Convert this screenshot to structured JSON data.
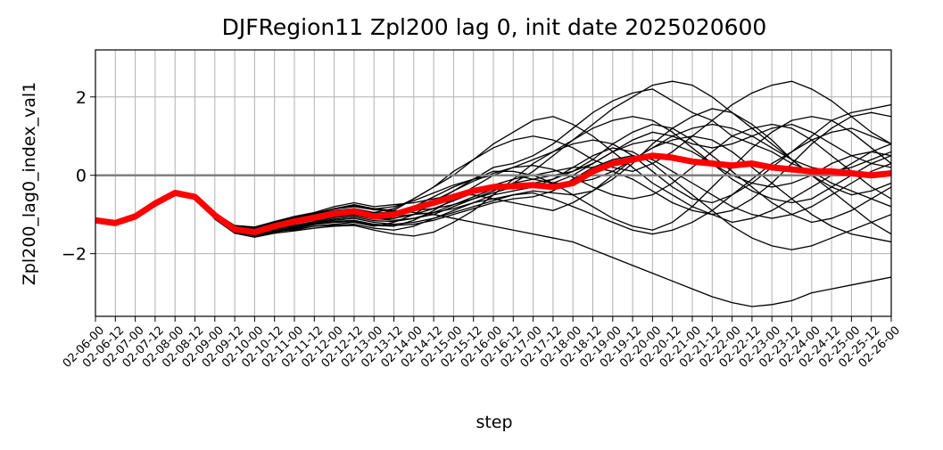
{
  "chart_data": {
    "type": "line",
    "title": "DJFRegion11 Zpl200 lag 0, init date 2025020600",
    "xlabel": "step",
    "ylabel": "Zpl200_lag0_index_val1",
    "categories": [
      "02-06-00",
      "02-06-12",
      "02-07-00",
      "02-07-12",
      "02-08-00",
      "02-08-12",
      "02-09-00",
      "02-09-12",
      "02-10-00",
      "02-10-12",
      "02-11-00",
      "02-11-12",
      "02-12-00",
      "02-12-12",
      "02-13-00",
      "02-13-12",
      "02-14-00",
      "02-14-12",
      "02-15-00",
      "02-15-12",
      "02-16-00",
      "02-16-12",
      "02-17-00",
      "02-17-12",
      "02-18-00",
      "02-18-12",
      "02-19-00",
      "02-19-12",
      "02-20-00",
      "02-20-12",
      "02-21-00",
      "02-21-12",
      "02-22-00",
      "02-22-12",
      "02-23-00",
      "02-23-12",
      "02-24-00",
      "02-24-12",
      "02-25-00",
      "02-25-12",
      "02-26-00"
    ],
    "ylim": [
      -3.6,
      3.2
    ],
    "yticks": [
      -2,
      0,
      2
    ],
    "grid": true,
    "reference_line": {
      "y": 0,
      "color": "#808080"
    },
    "ensemble_color": "#000000",
    "mean_color": "#ff0000",
    "series": [
      {
        "values": [
          -1.15,
          -1.22,
          -1.05,
          -0.72,
          -0.45,
          -0.55,
          -1.02,
          -1.38,
          -1.45,
          -1.3,
          -1.18,
          -1.08,
          -0.98,
          -0.92,
          -1.05,
          -1.0,
          -0.85,
          -0.7,
          -0.55,
          -0.4,
          -0.3,
          -0.28,
          -0.25,
          -0.3,
          -0.2,
          0.1,
          0.3,
          0.4,
          0.5,
          0.45,
          0.35,
          0.3,
          0.25,
          0.3,
          0.2,
          0.15,
          0.1,
          0.1,
          0.05,
          0.0,
          0.05
        ]
      },
      {
        "values": [
          -1.15,
          -1.22,
          -1.05,
          -0.72,
          -0.45,
          -0.55,
          -1.1,
          -1.45,
          -1.5,
          -1.42,
          -1.4,
          -1.3,
          -1.25,
          -1.2,
          -1.3,
          -1.2,
          -1.0,
          -0.7,
          -0.4,
          -0.1,
          0.2,
          0.3,
          0.5,
          0.8,
          1.2,
          1.6,
          1.9,
          2.1,
          2.2,
          1.9,
          1.6,
          1.4,
          1.0,
          0.8,
          0.6,
          0.3,
          0.1,
          -0.2,
          -0.4,
          -0.6,
          -0.8
        ]
      },
      {
        "values": [
          -1.15,
          -1.22,
          -1.05,
          -0.72,
          -0.45,
          -0.55,
          -0.95,
          -1.3,
          -1.35,
          -1.2,
          -1.1,
          -1.0,
          -0.85,
          -0.75,
          -0.85,
          -0.9,
          -0.95,
          -1.0,
          -1.1,
          -1.2,
          -1.3,
          -1.4,
          -1.5,
          -1.6,
          -1.7,
          -1.9,
          -2.1,
          -2.3,
          -2.5,
          -2.7,
          -2.9,
          -3.1,
          -3.25,
          -3.35,
          -3.3,
          -3.2,
          -3.0,
          -2.9,
          -2.8,
          -2.7,
          -2.6
        ]
      },
      {
        "values": [
          -1.15,
          -1.22,
          -1.05,
          -0.72,
          -0.45,
          -0.55,
          -1.05,
          -1.4,
          -1.48,
          -1.35,
          -1.25,
          -1.1,
          -1.0,
          -0.95,
          -1.0,
          -0.9,
          -0.6,
          -0.3,
          0.0,
          0.4,
          0.8,
          1.1,
          1.4,
          1.5,
          1.3,
          1.0,
          0.6,
          0.2,
          -0.2,
          -0.5,
          -0.8,
          -1.0,
          -1.2,
          -1.1,
          -0.9,
          -0.6,
          -0.3,
          0.0,
          0.3,
          0.6,
          0.8
        ]
      },
      {
        "values": [
          -1.15,
          -1.22,
          -1.05,
          -0.72,
          -0.45,
          -0.55,
          -1.0,
          -1.35,
          -1.42,
          -1.3,
          -1.2,
          -1.15,
          -1.05,
          -1.0,
          -1.1,
          -1.15,
          -1.1,
          -1.0,
          -0.8,
          -0.6,
          -0.4,
          -0.2,
          0.1,
          0.5,
          0.9,
          1.3,
          1.7,
          2.0,
          2.3,
          2.4,
          2.3,
          2.0,
          1.6,
          1.2,
          0.8,
          0.4,
          0.0,
          -0.4,
          -0.8,
          -1.2,
          -1.5
        ]
      },
      {
        "values": [
          -1.15,
          -1.22,
          -1.05,
          -0.72,
          -0.45,
          -0.55,
          -1.08,
          -1.42,
          -1.55,
          -1.45,
          -1.38,
          -1.3,
          -1.28,
          -1.25,
          -1.35,
          -1.4,
          -1.3,
          -1.1,
          -0.9,
          -0.7,
          -0.6,
          -0.5,
          -0.45,
          -0.6,
          -0.8,
          -1.0,
          -1.2,
          -1.4,
          -1.5,
          -1.4,
          -1.2,
          -0.9,
          -0.5,
          -0.1,
          0.3,
          0.6,
          0.9,
          1.1,
          1.2,
          1.0,
          0.8
        ]
      },
      {
        "values": [
          -1.15,
          -1.22,
          -1.05,
          -0.72,
          -0.45,
          -0.55,
          -0.98,
          -1.32,
          -1.38,
          -1.25,
          -1.15,
          -1.0,
          -0.9,
          -0.85,
          -0.95,
          -0.85,
          -0.6,
          -0.3,
          0.1,
          0.4,
          0.7,
          0.9,
          1.0,
          0.9,
          0.7,
          0.4,
          0.2,
          0.1,
          0.3,
          0.6,
          1.0,
          1.4,
          1.8,
          2.1,
          2.3,
          2.4,
          2.2,
          1.9,
          1.5,
          1.1,
          0.8
        ]
      },
      {
        "values": [
          -1.15,
          -1.22,
          -1.05,
          -0.72,
          -0.45,
          -0.55,
          -1.03,
          -1.38,
          -1.46,
          -1.34,
          -1.22,
          -1.12,
          -1.0,
          -0.95,
          -1.05,
          -1.05,
          -1.0,
          -0.95,
          -0.85,
          -0.7,
          -0.5,
          -0.4,
          -0.3,
          -0.1,
          0.2,
          0.5,
          0.7,
          0.6,
          0.3,
          -0.1,
          -0.5,
          -0.9,
          -1.3,
          -1.6,
          -1.8,
          -1.9,
          -1.8,
          -1.6,
          -1.4,
          -1.2,
          -1.0
        ]
      },
      {
        "values": [
          -1.15,
          -1.22,
          -1.05,
          -0.72,
          -0.45,
          -0.55,
          -1.12,
          -1.48,
          -1.58,
          -1.48,
          -1.42,
          -1.35,
          -1.3,
          -1.28,
          -1.4,
          -1.5,
          -1.55,
          -1.45,
          -1.2,
          -0.9,
          -0.5,
          -0.1,
          0.3,
          0.6,
          0.8,
          0.9,
          0.8,
          0.5,
          0.1,
          -0.3,
          -0.6,
          -0.7,
          -0.5,
          -0.2,
          0.2,
          0.6,
          1.0,
          1.4,
          1.6,
          1.7,
          1.8
        ]
      },
      {
        "values": [
          -1.15,
          -1.22,
          -1.05,
          -0.72,
          -0.45,
          -0.55,
          -0.96,
          -1.28,
          -1.32,
          -1.18,
          -1.05,
          -0.95,
          -0.8,
          -0.7,
          -0.8,
          -0.75,
          -0.7,
          -0.6,
          -0.5,
          -0.5,
          -0.6,
          -0.7,
          -0.8,
          -0.9,
          -0.7,
          -0.4,
          0.0,
          0.4,
          0.7,
          0.9,
          1.0,
          0.9,
          0.6,
          0.2,
          -0.2,
          -0.6,
          -1.0,
          -1.3,
          -1.5,
          -1.6,
          -1.7
        ]
      },
      {
        "values": [
          -1.15,
          -1.22,
          -1.05,
          -0.72,
          -0.45,
          -0.55,
          -1.06,
          -1.44,
          -1.52,
          -1.4,
          -1.32,
          -1.22,
          -1.15,
          -1.1,
          -1.2,
          -1.25,
          -1.2,
          -1.1,
          -0.95,
          -0.8,
          -0.65,
          -0.5,
          -0.4,
          -0.45,
          -0.5,
          -0.4,
          -0.1,
          0.3,
          0.8,
          1.2,
          1.5,
          1.7,
          1.6,
          1.3,
          0.9,
          0.4,
          0.0,
          -0.3,
          -0.5,
          -0.4,
          -0.2
        ]
      },
      {
        "values": [
          -1.15,
          -1.22,
          -1.05,
          -0.72,
          -0.45,
          -0.55,
          -1.01,
          -1.36,
          -1.4,
          -1.28,
          -1.16,
          -1.04,
          -0.94,
          -0.88,
          -0.96,
          -0.95,
          -0.8,
          -0.55,
          -0.3,
          -0.1,
          0.1,
          0.1,
          0.0,
          -0.2,
          -0.5,
          -0.8,
          -1.1,
          -1.3,
          -1.4,
          -1.2,
          -0.8,
          -0.3,
          0.2,
          0.7,
          1.1,
          1.4,
          1.5,
          1.4,
          1.1,
          0.7,
          0.3
        ]
      },
      {
        "values": [
          -1.15,
          -1.22,
          -1.05,
          -0.72,
          -0.45,
          -0.55,
          -1.09,
          -1.46,
          -1.54,
          -1.43,
          -1.36,
          -1.26,
          -1.2,
          -1.18,
          -1.28,
          -1.3,
          -1.15,
          -0.9,
          -0.6,
          -0.3,
          0.0,
          0.2,
          0.4,
          0.6,
          0.9,
          1.2,
          1.4,
          1.5,
          1.4,
          1.1,
          0.7,
          0.3,
          -0.1,
          -0.4,
          -0.6,
          -0.7,
          -0.6,
          -0.3,
          0.0,
          0.3,
          0.5
        ]
      },
      {
        "values": [
          -1.15,
          -1.22,
          -1.05,
          -0.72,
          -0.45,
          -0.55,
          -0.99,
          -1.33,
          -1.37,
          -1.22,
          -1.1,
          -0.98,
          -0.86,
          -0.8,
          -0.88,
          -0.92,
          -0.9,
          -0.85,
          -0.75,
          -0.6,
          -0.45,
          -0.3,
          -0.2,
          -0.1,
          0.1,
          0.4,
          0.8,
          1.1,
          1.3,
          1.2,
          0.9,
          0.5,
          0.1,
          -0.3,
          -0.7,
          -1.0,
          -1.2,
          -1.1,
          -0.9,
          -0.6,
          -0.3
        ]
      },
      {
        "values": [
          -1.15,
          -1.22,
          -1.05,
          -0.72,
          -0.45,
          -0.55,
          -1.04,
          -1.4,
          -1.49,
          -1.37,
          -1.28,
          -1.18,
          -1.08,
          -1.02,
          -1.12,
          -1.1,
          -1.0,
          -0.85,
          -0.65,
          -0.45,
          -0.25,
          -0.1,
          0.0,
          0.1,
          0.2,
          0.2,
          0.1,
          -0.1,
          -0.4,
          -0.7,
          -0.9,
          -1.0,
          -0.9,
          -0.6,
          -0.2,
          0.3,
          0.8,
          1.2,
          1.5,
          1.6,
          1.5
        ]
      },
      {
        "values": [
          -1.15,
          -1.22,
          -1.05,
          -0.72,
          -0.45,
          -0.55,
          -1.0,
          -1.34,
          -1.41,
          -1.27,
          -1.17,
          -1.06,
          -0.96,
          -0.9,
          -0.98,
          -0.96,
          -0.88,
          -0.75,
          -0.6,
          -0.45,
          -0.35,
          -0.3,
          -0.3,
          -0.2,
          0.0,
          0.3,
          0.6,
          0.9,
          1.1,
          1.0,
          0.8,
          0.7,
          0.8,
          1.0,
          1.2,
          1.3,
          1.1,
          0.8,
          0.5,
          0.3,
          0.2
        ]
      },
      {
        "values": [
          -1.15,
          -1.22,
          -1.05,
          -0.72,
          -0.45,
          -0.55,
          -1.07,
          -1.45,
          -1.53,
          -1.41,
          -1.34,
          -1.24,
          -1.18,
          -1.15,
          -1.25,
          -1.28,
          -1.25,
          -1.15,
          -1.0,
          -0.85,
          -0.7,
          -0.6,
          -0.55,
          -0.4,
          -0.1,
          0.2,
          0.4,
          0.5,
          0.4,
          0.1,
          -0.2,
          -0.5,
          -0.8,
          -1.0,
          -1.1,
          -1.0,
          -0.8,
          -0.5,
          -0.2,
          0.1,
          0.3
        ]
      },
      {
        "values": [
          -1.15,
          -1.22,
          -1.05,
          -0.72,
          -0.45,
          -0.55,
          -1.02,
          -1.37,
          -1.43,
          -1.31,
          -1.2,
          -1.1,
          -1.0,
          -0.93,
          -1.02,
          -0.98,
          -0.85,
          -0.65,
          -0.4,
          -0.15,
          0.05,
          0.2,
          0.25,
          0.15,
          -0.05,
          -0.3,
          -0.5,
          -0.6,
          -0.5,
          -0.2,
          0.2,
          0.6,
          1.0,
          1.2,
          1.3,
          1.2,
          0.9,
          0.5,
          0.1,
          -0.3,
          -0.6
        ]
      },
      {
        "values": [
          -1.15,
          -1.22,
          -1.05,
          -0.72,
          -0.45,
          -0.55,
          -1.05,
          -1.41,
          -1.5,
          -1.38,
          -1.3,
          -1.2,
          -1.12,
          -1.06,
          -1.16,
          -1.18,
          -1.1,
          -0.95,
          -0.75,
          -0.55,
          -0.35,
          -0.2,
          -0.1,
          0.0,
          0.1,
          0.3,
          0.6,
          0.8,
          0.9,
          0.8,
          0.6,
          0.3,
          0.0,
          -0.2,
          -0.3,
          -0.2,
          0.0,
          0.3,
          0.5,
          0.6,
          0.5
        ]
      },
      {
        "values": [
          -1.15,
          -1.22,
          -1.05,
          -0.72,
          -0.45,
          -0.55,
          -0.97,
          -1.3,
          -1.34,
          -1.2,
          -1.08,
          -0.97,
          -0.85,
          -0.78,
          -0.86,
          -0.8,
          -0.65,
          -0.45,
          -0.25,
          -0.1,
          0.0,
          0.0,
          -0.1,
          -0.2,
          -0.2,
          -0.1,
          0.1,
          0.4,
          0.7,
          1.0,
          1.2,
          1.3,
          1.2,
          1.0,
          0.7,
          0.4,
          0.2,
          0.1,
          0.2,
          0.4,
          0.6
        ]
      }
    ]
  }
}
